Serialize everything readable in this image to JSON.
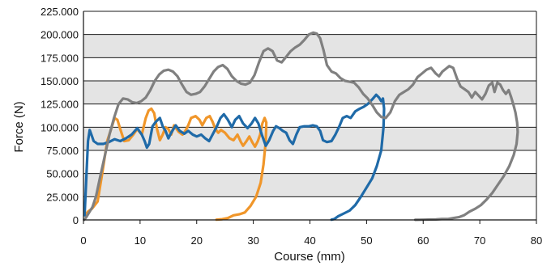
{
  "chart_data": {
    "type": "line",
    "xlabel": "Course (mm)",
    "ylabel": "Force (N)",
    "xlim": [
      0,
      80
    ],
    "ylim": [
      0,
      225
    ],
    "x_ticks": [
      "0",
      "10",
      "20",
      "30",
      "40",
      "50",
      "60",
      "70",
      "80"
    ],
    "y_ticks": [
      "0",
      "25.000",
      "50.000",
      "75.000",
      "100.000",
      "125.000",
      "150.000",
      "175.000",
      "200.000",
      "225.000"
    ],
    "grid": "horizontal",
    "plot_background": "alternating gray bands",
    "legend": "none",
    "series": [
      {
        "color": "#f0962a",
        "points": [
          [
            0.3,
            5
          ],
          [
            0.8,
            9
          ],
          [
            1.5,
            12
          ],
          [
            2.5,
            20
          ],
          [
            3.3,
            50
          ],
          [
            4.2,
            85
          ],
          [
            5,
            100
          ],
          [
            5.5,
            110
          ],
          [
            6,
            108
          ],
          [
            6.5,
            98
          ],
          [
            7.2,
            85
          ],
          [
            8,
            86
          ],
          [
            8.8,
            92
          ],
          [
            9.5,
            98
          ],
          [
            10.3,
            92
          ],
          [
            11,
            110
          ],
          [
            11.5,
            118
          ],
          [
            12,
            120
          ],
          [
            12.5,
            115
          ],
          [
            13,
            98
          ],
          [
            13.5,
            86
          ],
          [
            14,
            92
          ],
          [
            14.5,
            100
          ],
          [
            15,
            98
          ],
          [
            15.5,
            92
          ],
          [
            16,
            102
          ],
          [
            16.8,
            95
          ],
          [
            17.5,
            92
          ],
          [
            18,
            96
          ],
          [
            18.5,
            102
          ],
          [
            19,
            110
          ],
          [
            19.8,
            112
          ],
          [
            20.5,
            108
          ],
          [
            21,
            102
          ],
          [
            21.7,
            110
          ],
          [
            22.3,
            112
          ],
          [
            22.8,
            106
          ],
          [
            23.3,
            98
          ],
          [
            23.8,
            94
          ],
          [
            24.3,
            97
          ],
          [
            25,
            94
          ],
          [
            25.8,
            88
          ],
          [
            26.5,
            86
          ],
          [
            27.2,
            92
          ],
          [
            27.8,
            84
          ],
          [
            28.2,
            80
          ],
          [
            28.8,
            85
          ],
          [
            29.3,
            90
          ],
          [
            29.8,
            84
          ],
          [
            30.3,
            79
          ],
          [
            30.8,
            85
          ],
          [
            31.2,
            92
          ],
          [
            31.6,
            104
          ],
          [
            32,
            110
          ],
          [
            32.3,
            105
          ],
          [
            32.2,
            85
          ],
          [
            31.8,
            60
          ],
          [
            31.3,
            40
          ],
          [
            30.5,
            25
          ],
          [
            29.5,
            15
          ],
          [
            28.5,
            8
          ],
          [
            27.5,
            6
          ],
          [
            26.5,
            5
          ],
          [
            25.5,
            2
          ],
          [
            24.5,
            0.8
          ],
          [
            23.5,
            0.3
          ]
        ]
      },
      {
        "color": "#1f6aa8",
        "points": [
          [
            0.2,
            5
          ],
          [
            0.5,
            45
          ],
          [
            0.8,
            85
          ],
          [
            1.1,
            97
          ],
          [
            1.4,
            92
          ],
          [
            1.8,
            85
          ],
          [
            2.5,
            82
          ],
          [
            3.5,
            82
          ],
          [
            4.5,
            84
          ],
          [
            5.5,
            87
          ],
          [
            6.5,
            85
          ],
          [
            7.5,
            88
          ],
          [
            8.5,
            92
          ],
          [
            9.5,
            99
          ],
          [
            10.3,
            92
          ],
          [
            10.8,
            85
          ],
          [
            11.2,
            78
          ],
          [
            11.6,
            82
          ],
          [
            12.2,
            101
          ],
          [
            12.8,
            106
          ],
          [
            13.5,
            110
          ],
          [
            14,
            101
          ],
          [
            14.5,
            96
          ],
          [
            15,
            88
          ],
          [
            15.5,
            94
          ],
          [
            16.3,
            102
          ],
          [
            17,
            96
          ],
          [
            17.8,
            93
          ],
          [
            18.5,
            96
          ],
          [
            19.3,
            92
          ],
          [
            20,
            90
          ],
          [
            20.8,
            92
          ],
          [
            21.5,
            88
          ],
          [
            22.2,
            85
          ],
          [
            22.8,
            92
          ],
          [
            23.5,
            100
          ],
          [
            24.2,
            110
          ],
          [
            24.8,
            114
          ],
          [
            25.5,
            108
          ],
          [
            26.2,
            100
          ],
          [
            26.8,
            108
          ],
          [
            27.5,
            112
          ],
          [
            28.2,
            104
          ],
          [
            29,
            99
          ],
          [
            29.7,
            104
          ],
          [
            30.3,
            110
          ],
          [
            30.9,
            104
          ],
          [
            31.5,
            92
          ],
          [
            32.2,
            80
          ],
          [
            32.8,
            86
          ],
          [
            33.5,
            96
          ],
          [
            34,
            101
          ],
          [
            34.6,
            99
          ],
          [
            35.2,
            96
          ],
          [
            35.8,
            94
          ],
          [
            36.4,
            86
          ],
          [
            37,
            82
          ],
          [
            37.6,
            92
          ],
          [
            38.2,
            100
          ],
          [
            39,
            101
          ],
          [
            39.8,
            101
          ],
          [
            40.5,
            102
          ],
          [
            41.2,
            101
          ],
          [
            41.8,
            96
          ],
          [
            42.3,
            86
          ],
          [
            43,
            84
          ],
          [
            43.8,
            85
          ],
          [
            44.5,
            92
          ],
          [
            45.2,
            101
          ],
          [
            45.8,
            110
          ],
          [
            46.5,
            112
          ],
          [
            47.2,
            110
          ],
          [
            48,
            117
          ],
          [
            48.8,
            120
          ],
          [
            49.5,
            122
          ],
          [
            50.2,
            125
          ],
          [
            51,
            130
          ],
          [
            51.7,
            135
          ],
          [
            52.2,
            132
          ],
          [
            52.6,
            128
          ],
          [
            52.9,
            131
          ],
          [
            53.1,
            120
          ],
          [
            53,
            100
          ],
          [
            52.6,
            75
          ],
          [
            51.8,
            58
          ],
          [
            51,
            45
          ],
          [
            50,
            35
          ],
          [
            49,
            25
          ],
          [
            48,
            16
          ],
          [
            47,
            10
          ],
          [
            46,
            7
          ],
          [
            45,
            4
          ],
          [
            44.3,
            1
          ],
          [
            43.8,
            0.3
          ]
        ]
      },
      {
        "color": "#808080",
        "points": [
          [
            0.1,
            0
          ],
          [
            0.5,
            3
          ],
          [
            1,
            8
          ],
          [
            1.6,
            14
          ],
          [
            2.2,
            25
          ],
          [
            3,
            48
          ],
          [
            3.8,
            70
          ],
          [
            4.6,
            92
          ],
          [
            5.4,
            110
          ],
          [
            6.2,
            125
          ],
          [
            7,
            131
          ],
          [
            7.8,
            130
          ],
          [
            8.6,
            127
          ],
          [
            9.4,
            126
          ],
          [
            10.2,
            128
          ],
          [
            11,
            132
          ],
          [
            11.8,
            140
          ],
          [
            12.6,
            150
          ],
          [
            13.4,
            157
          ],
          [
            14.2,
            161
          ],
          [
            15,
            162
          ],
          [
            15.8,
            160
          ],
          [
            16.6,
            155
          ],
          [
            17.4,
            146
          ],
          [
            18.2,
            138
          ],
          [
            19,
            135
          ],
          [
            19.8,
            136
          ],
          [
            20.6,
            138
          ],
          [
            21.4,
            144
          ],
          [
            22.2,
            152
          ],
          [
            23,
            160
          ],
          [
            23.8,
            165
          ],
          [
            24.6,
            167
          ],
          [
            25.4,
            163
          ],
          [
            26.2,
            155
          ],
          [
            27,
            150
          ],
          [
            27.8,
            147
          ],
          [
            28.6,
            146
          ],
          [
            29.4,
            148
          ],
          [
            30.2,
            156
          ],
          [
            31,
            170
          ],
          [
            31.8,
            182
          ],
          [
            32.6,
            185
          ],
          [
            33.4,
            182
          ],
          [
            34.2,
            172
          ],
          [
            35,
            170
          ],
          [
            35.8,
            176
          ],
          [
            36.6,
            182
          ],
          [
            37.4,
            186
          ],
          [
            38.2,
            189
          ],
          [
            39,
            194
          ],
          [
            39.8,
            200
          ],
          [
            40.6,
            202
          ],
          [
            41.2,
            201
          ],
          [
            41.8,
            196
          ],
          [
            42.4,
            183
          ],
          [
            43,
            167
          ],
          [
            43.8,
            160
          ],
          [
            44.6,
            158
          ],
          [
            45.4,
            153
          ],
          [
            46.2,
            150
          ],
          [
            47,
            149
          ],
          [
            47.8,
            148
          ],
          [
            48.6,
            143
          ],
          [
            49.4,
            136
          ],
          [
            50.2,
            131
          ],
          [
            51,
            124
          ],
          [
            51.8,
            116
          ],
          [
            52.6,
            111
          ],
          [
            53.4,
            110
          ],
          [
            54.2,
            116
          ],
          [
            55,
            128
          ],
          [
            55.8,
            135
          ],
          [
            56.6,
            138
          ],
          [
            57.4,
            141
          ],
          [
            58.2,
            146
          ],
          [
            59,
            154
          ],
          [
            59.8,
            158
          ],
          [
            60.6,
            162
          ],
          [
            61.4,
            164
          ],
          [
            62.2,
            158
          ],
          [
            62.8,
            155
          ],
          [
            63.4,
            160
          ],
          [
            64,
            163
          ],
          [
            64.6,
            166
          ],
          [
            65.3,
            164
          ],
          [
            66,
            152
          ],
          [
            66.6,
            144
          ],
          [
            67.3,
            141
          ],
          [
            68,
            138
          ],
          [
            68.6,
            132
          ],
          [
            69.2,
            138
          ],
          [
            69.8,
            134
          ],
          [
            70.4,
            130
          ],
          [
            71,
            136
          ],
          [
            71.6,
            145
          ],
          [
            72.2,
            148
          ],
          [
            72.6,
            138
          ],
          [
            73.1,
            148
          ],
          [
            73.6,
            146
          ],
          [
            74.1,
            140
          ],
          [
            74.6,
            136
          ],
          [
            75.1,
            140
          ],
          [
            75.5,
            133
          ],
          [
            75.9,
            125
          ],
          [
            76.3,
            116
          ],
          [
            76.6,
            105
          ],
          [
            76.7,
            95
          ],
          [
            76.5,
            82
          ],
          [
            76,
            70
          ],
          [
            75.2,
            58
          ],
          [
            74.2,
            47
          ],
          [
            73.2,
            38
          ],
          [
            72.2,
            29
          ],
          [
            71.2,
            22
          ],
          [
            70.2,
            16
          ],
          [
            69.2,
            12
          ],
          [
            68.2,
            9
          ],
          [
            67.2,
            5
          ],
          [
            66.3,
            3
          ],
          [
            65.3,
            2
          ],
          [
            64.3,
            1
          ],
          [
            63.3,
            1
          ],
          [
            62.3,
            0.5
          ],
          [
            61.3,
            0.4
          ],
          [
            60.3,
            0.3
          ],
          [
            59.3,
            0.2
          ],
          [
            58.6,
            0.1
          ]
        ]
      }
    ]
  }
}
